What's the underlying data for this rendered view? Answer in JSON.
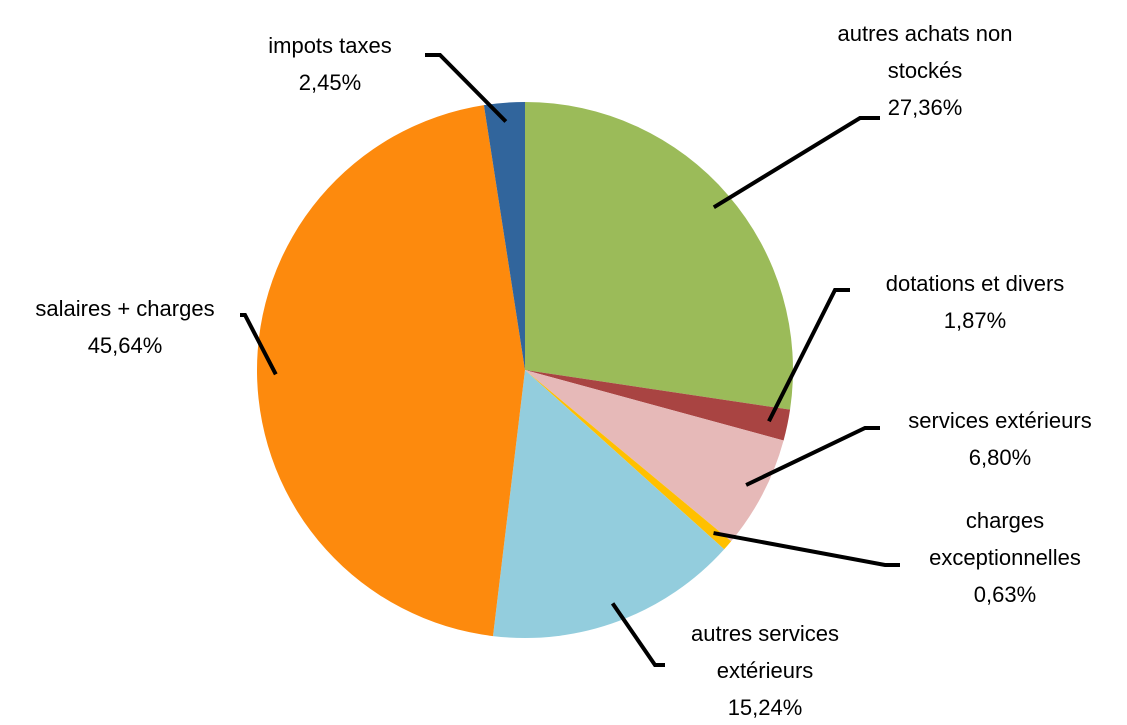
{
  "chart_data": {
    "type": "pie",
    "categories": [
      "autres achats non stockés",
      "dotations et divers",
      "services extérieurs",
      "charges exceptionnelles",
      "autres services extérieurs",
      "salaires + charges",
      "impots taxes"
    ],
    "values": [
      27.36,
      1.87,
      6.8,
      0.63,
      15.24,
      45.64,
      2.45
    ],
    "value_labels": [
      "27,36%",
      "1,87%",
      "6,80%",
      "0,63%",
      "15,24%",
      "45,64%",
      "2,45%"
    ],
    "colors": [
      "#9bbb59",
      "#a94442",
      "#e6b9b8",
      "#ffc000",
      "#93cddd",
      "#fd8a0d",
      "#31659c"
    ]
  }
}
